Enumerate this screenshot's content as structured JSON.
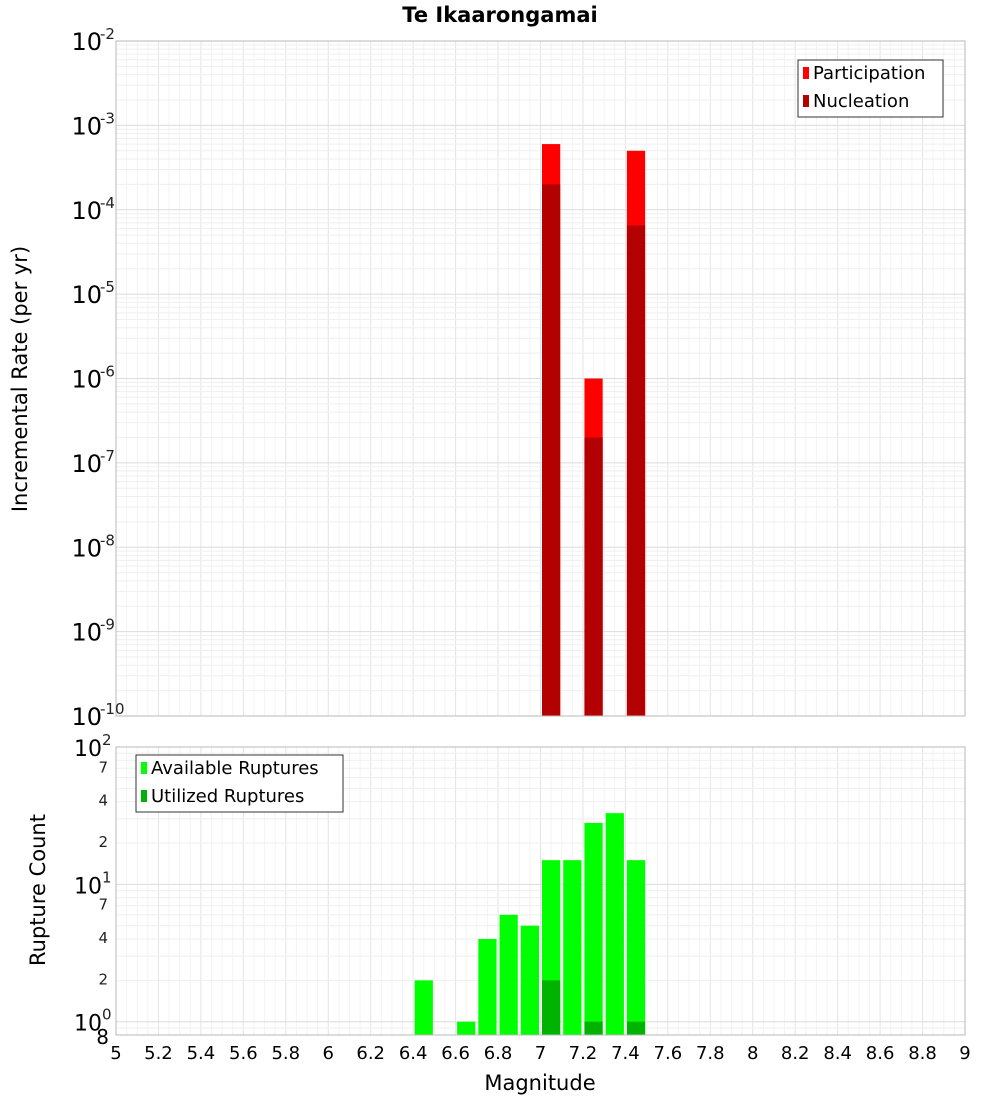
{
  "chart_data": [
    {
      "type": "bar",
      "title": "Te Ikaarongamai",
      "ylabel": "Incremental Rate (per yr)",
      "xlabel": "",
      "yscale": "log",
      "xlim": [
        5,
        9
      ],
      "ylim": [
        1e-10,
        0.01
      ],
      "ytick_labels": [
        {
          "base": "10",
          "exp": "-10",
          "value": 1e-10
        },
        {
          "base": "10",
          "exp": "-9",
          "value": 1e-09
        },
        {
          "base": "10",
          "exp": "-8",
          "value": 1e-08
        },
        {
          "base": "10",
          "exp": "-7",
          "value": 1e-07
        },
        {
          "base": "10",
          "exp": "-6",
          "value": 1e-06
        },
        {
          "base": "10",
          "exp": "-5",
          "value": 1e-05
        },
        {
          "base": "10",
          "exp": "-4",
          "value": 0.0001
        },
        {
          "base": "10",
          "exp": "-3",
          "value": 0.001
        },
        {
          "base": "10",
          "exp": "-2",
          "value": 0.01
        }
      ],
      "legend": {
        "placement": "top-right",
        "entries": [
          {
            "name": "Participation",
            "color": "#ff0000"
          },
          {
            "name": "Nucleation",
            "color": "#b30000"
          }
        ]
      },
      "bar_width": 0.1,
      "series": [
        {
          "name": "Participation",
          "color": "#ff0000",
          "x": [
            7.05,
            7.25,
            7.45
          ],
          "values": [
            0.0006,
            1e-06,
            0.0005
          ]
        },
        {
          "name": "Nucleation",
          "color": "#b30000",
          "x": [
            7.05,
            7.25,
            7.45
          ],
          "values": [
            0.0002,
            2e-07,
            6.5e-05
          ]
        }
      ]
    },
    {
      "type": "bar",
      "title": "",
      "ylabel": "Rupture Count",
      "xlabel": "Magnitude",
      "yscale": "log",
      "xlim": [
        5,
        9
      ],
      "ylim": [
        0.8,
        100
      ],
      "xtick_labels": [
        "5",
        "5.2",
        "5.4",
        "5.6",
        "5.8",
        "6",
        "6.2",
        "6.4",
        "6.6",
        "6.8",
        "7",
        "7.2",
        "7.4",
        "7.6",
        "7.8",
        "8",
        "8.2",
        "8.4",
        "8.6",
        "8.8",
        "9"
      ],
      "ytick_labels": [
        {
          "base": "10",
          "exp": "2",
          "value": 100
        },
        {
          "base": "",
          "exp": "7",
          "value": 70
        },
        {
          "base": "",
          "exp": "4",
          "value": 40
        },
        {
          "base": "",
          "exp": "2",
          "value": 20
        },
        {
          "base": "10",
          "exp": "1",
          "value": 10
        },
        {
          "base": "",
          "exp": "7",
          "value": 7
        },
        {
          "base": "",
          "exp": "4",
          "value": 4
        },
        {
          "base": "",
          "exp": "2",
          "value": 2
        },
        {
          "base": "10",
          "exp": "0",
          "value": 1
        },
        {
          "base": "8",
          "exp": "",
          "value": 0.8
        }
      ],
      "legend": {
        "placement": "top-left",
        "entries": [
          {
            "name": "Available Ruptures",
            "color": "#00ff00"
          },
          {
            "name": "Utilized Ruptures",
            "color": "#00b300"
          }
        ]
      },
      "bar_width": 0.1,
      "series": [
        {
          "name": "Available Ruptures",
          "color": "#00ff00",
          "x": [
            6.45,
            6.65,
            6.75,
            6.85,
            6.95,
            7.05,
            7.15,
            7.25,
            7.35,
            7.45
          ],
          "values": [
            2,
            1,
            4,
            6,
            5,
            15,
            15,
            28,
            33,
            15
          ]
        },
        {
          "name": "Utilized Ruptures",
          "color": "#00b300",
          "x": [
            7.05,
            7.25,
            7.45
          ],
          "values": [
            2,
            1,
            1
          ]
        }
      ]
    }
  ]
}
